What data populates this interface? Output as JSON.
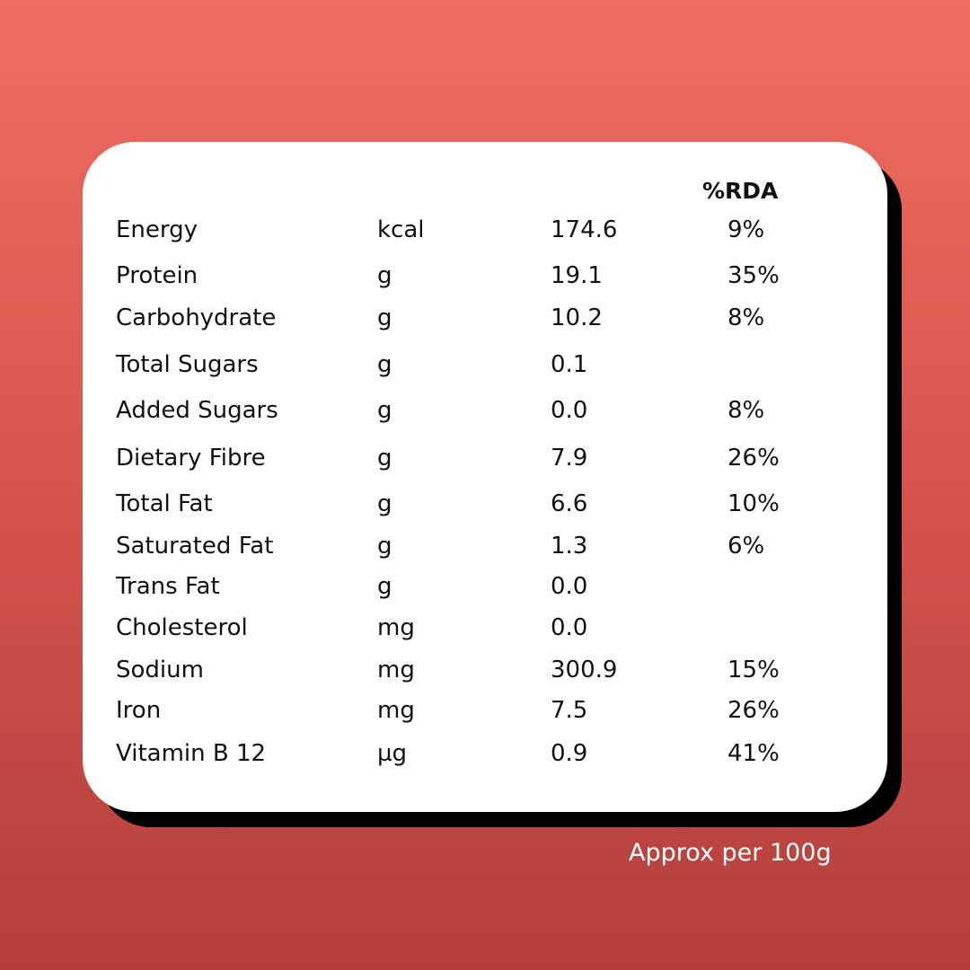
{
  "table": {
    "rda_header": "%RDA",
    "rows": [
      {
        "name": "Energy",
        "unit": "kcal",
        "value": "174.6",
        "rda": "9%"
      },
      {
        "name": "Protein",
        "unit": "g",
        "value": "19.1",
        "rda": "35%"
      },
      {
        "name": "Carbohydrate",
        "unit": "g",
        "value": "10.2",
        "rda": "8%"
      },
      {
        "name": "Total Sugars",
        "unit": "g",
        "value": "0.1",
        "rda": ""
      },
      {
        "name": "Added Sugars",
        "unit": "g",
        "value": "0.0",
        "rda": "8%"
      },
      {
        "name": "Dietary Fibre",
        "unit": "g",
        "value": "7.9",
        "rda": "26%"
      },
      {
        "name": "Total Fat",
        "unit": "g",
        "value": "6.6",
        "rda": "10%"
      },
      {
        "name": "Saturated Fat",
        "unit": "g",
        "value": "1.3",
        "rda": "6%"
      },
      {
        "name": "Trans Fat",
        "unit": "g",
        "value": "0.0",
        "rda": ""
      },
      {
        "name": "Cholesterol",
        "unit": "mg",
        "value": "0.0",
        "rda": ""
      },
      {
        "name": "Sodium",
        "unit": "mg",
        "value": "300.9",
        "rda": "15%"
      },
      {
        "name": "Iron",
        "unit": "mg",
        "value": "7.5",
        "rda": "26%"
      },
      {
        "name": "Vitamin B 12",
        "unit": "µg",
        "value": "0.9",
        "rda": "41%"
      }
    ]
  },
  "footnote": "Approx per 100g",
  "colors": {
    "background_top": "#ee6e62",
    "background_bottom": "#b23f3b",
    "card": "#ffffff",
    "card_shadow": "#000000",
    "text": "#111111"
  }
}
